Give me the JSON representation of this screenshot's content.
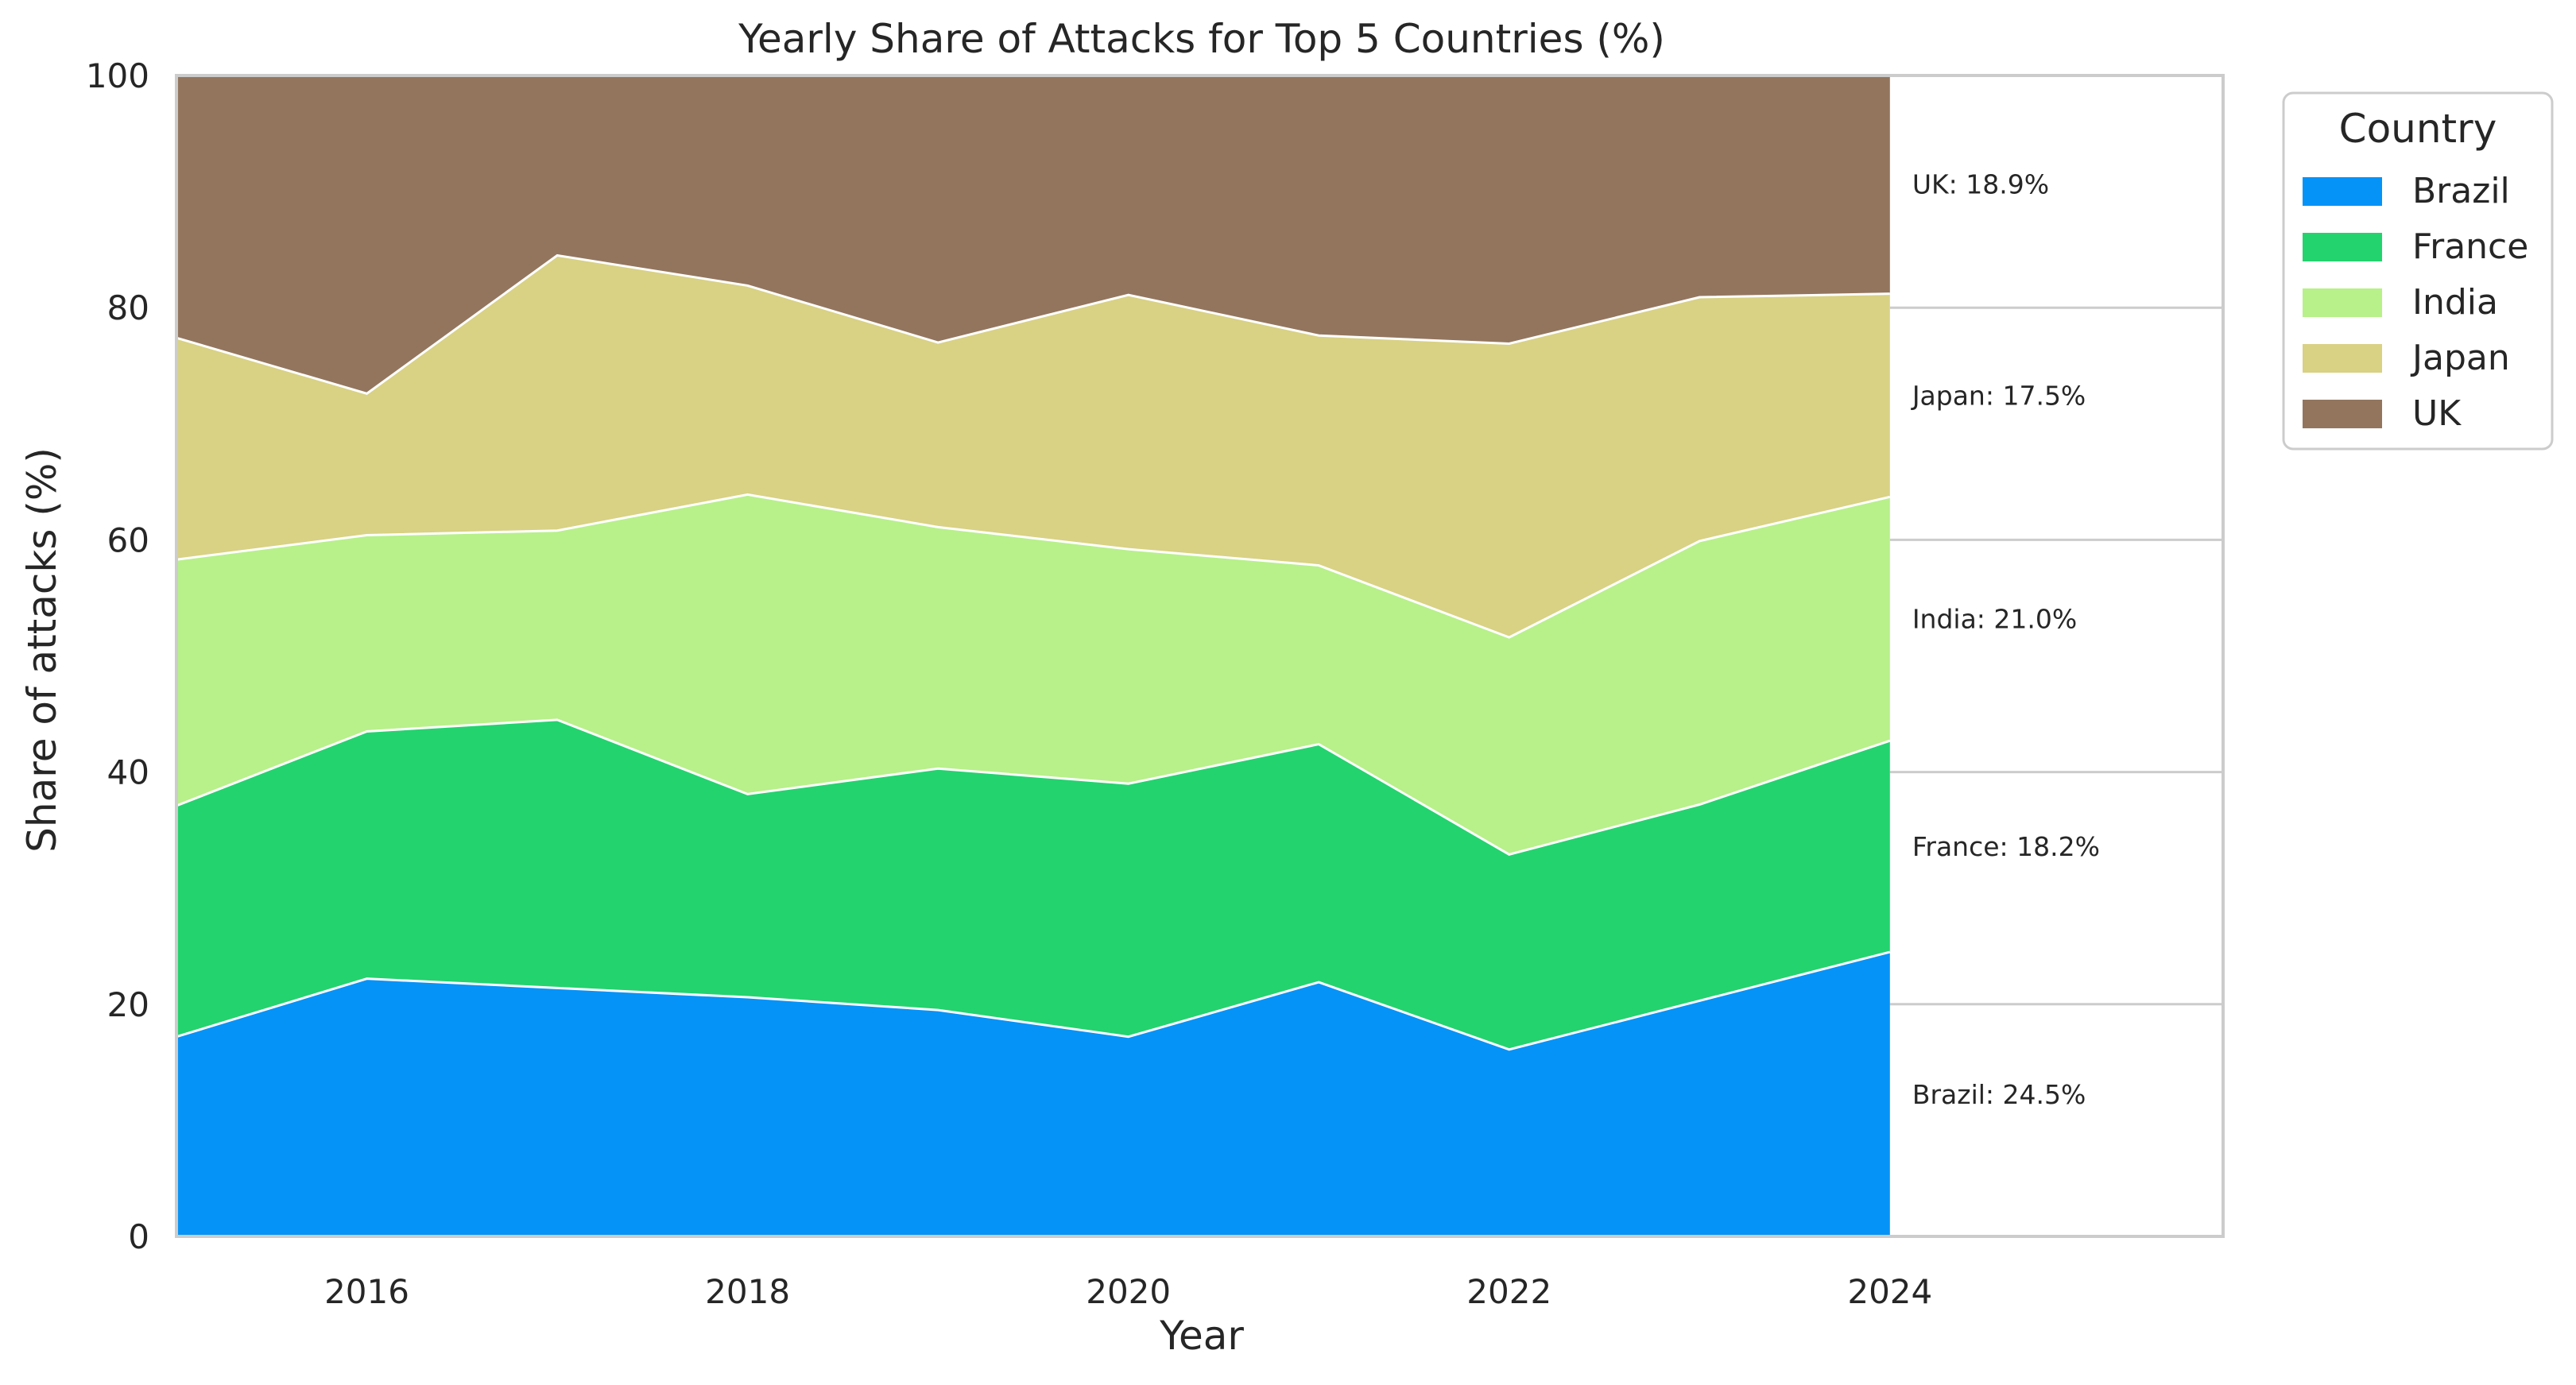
{
  "chart_data": {
    "type": "area",
    "title": "Yearly Share of Attacks for Top 5 Countries (%)",
    "xlabel": "Year",
    "ylabel": "Share of attacks (%)",
    "xlim": [
      2015,
      2025.75
    ],
    "ylim": [
      0,
      100
    ],
    "x": [
      2015,
      2016,
      2017,
      2018,
      2019,
      2020,
      2021,
      2022,
      2023,
      2024
    ],
    "x_ticks": [
      2016,
      2018,
      2020,
      2022,
      2024
    ],
    "y_ticks": [
      0,
      20,
      40,
      60,
      80,
      100
    ],
    "stacked": true,
    "grid": "horizontal lines in annotation panel only",
    "series": [
      {
        "name": "Brazil",
        "color": "#0593F7",
        "values": [
          17.2,
          22.2,
          21.4,
          20.6,
          19.5,
          17.2,
          21.9,
          16.1,
          20.3,
          24.5
        ]
      },
      {
        "name": "France",
        "color": "#23D36E",
        "values": [
          19.9,
          21.3,
          23.1,
          17.5,
          20.8,
          21.8,
          20.5,
          16.8,
          16.9,
          18.2
        ]
      },
      {
        "name": "India",
        "color": "#B8F08A",
        "values": [
          21.2,
          16.9,
          16.3,
          25.8,
          20.8,
          20.2,
          15.4,
          18.7,
          22.7,
          21.0
        ]
      },
      {
        "name": "Japan",
        "color": "#D9D184",
        "values": [
          19.1,
          12.2,
          23.7,
          18.0,
          15.9,
          21.9,
          19.8,
          25.3,
          21.0,
          17.5
        ]
      },
      {
        "name": "UK",
        "color": "#93755E",
        "values": [
          22.6,
          27.4,
          15.5,
          18.1,
          23.0,
          18.9,
          22.4,
          23.1,
          19.1,
          18.9
        ]
      }
    ],
    "annotations": [
      {
        "text": "Brazil: 24.5%",
        "y": 12.25
      },
      {
        "text": "France: 18.2%",
        "y": 33.6
      },
      {
        "text": "India: 21.0%",
        "y": 53.2
      },
      {
        "text": "Japan: 17.5%",
        "y": 72.45
      },
      {
        "text": "UK: 18.9%",
        "y": 90.65
      }
    ],
    "legend": {
      "title": "Country",
      "placement": "outside top-right"
    }
  }
}
